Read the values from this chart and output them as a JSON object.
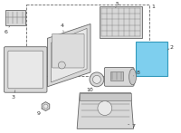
{
  "bg_color": "#ffffff",
  "part_color": "#d8d8d8",
  "part_color2": "#e8e8e8",
  "highlight_color": "#7ecfee",
  "line_color": "#666666",
  "dark_line": "#444444",
  "label_color": "#333333",
  "label_fontsize": 4.5,
  "dpi": 100,
  "figw": 2.0,
  "figh": 1.47
}
